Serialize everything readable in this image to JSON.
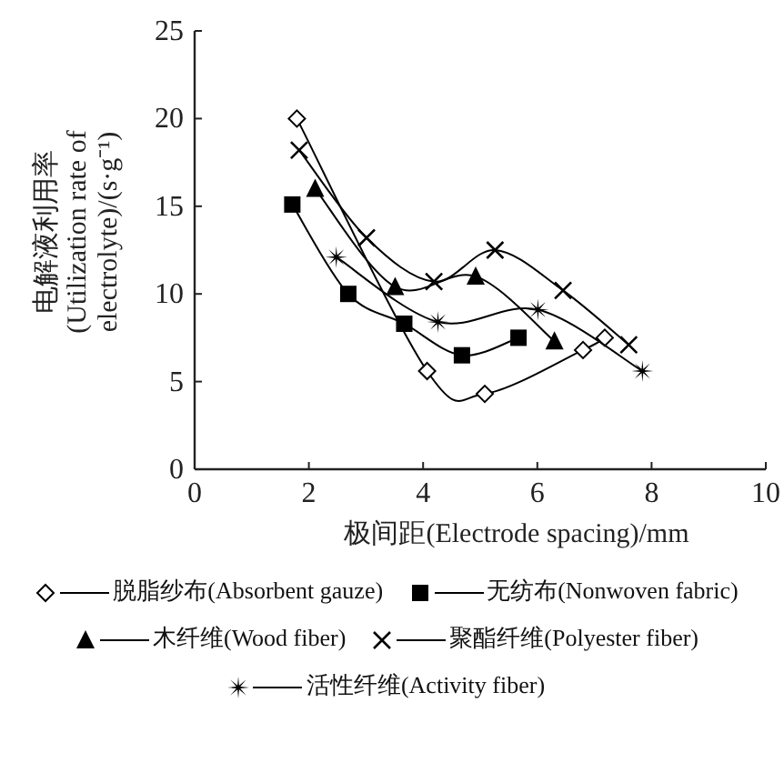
{
  "chart_data": {
    "type": "line",
    "ylabel": "电解液利用率\n(Utilization rate of\nelectrolyte)/(s·g⁻¹)",
    "xlabel": "极间距(Electrode spacing)/mm",
    "xlim": [
      0,
      10
    ],
    "xticks": [
      0,
      2,
      4,
      6,
      8,
      10
    ],
    "ylim": [
      0,
      25
    ],
    "yticks": [
      0,
      5,
      10,
      15,
      20,
      25
    ],
    "grid": false,
    "legend": "bottom",
    "line_style": "solid",
    "series": [
      {
        "name": "脱脂纱布(Absorbent gauze)",
        "color": "#000000",
        "marker": "diamond",
        "x": [
          1.79,
          4.07,
          5.08,
          6.8,
          7.18
        ],
        "values": [
          20.0,
          5.6,
          4.3,
          6.8,
          7.5
        ]
      },
      {
        "name": "无纺布(Nonwoven fabric)",
        "color": "#000000",
        "marker": "square",
        "x": [
          1.71,
          2.69,
          3.67,
          4.68,
          5.67
        ],
        "values": [
          15.1,
          10.0,
          8.3,
          6.5,
          7.5
        ]
      },
      {
        "name": "木纤维(Wood fiber)",
        "color": "#000000",
        "marker": "triangle",
        "x": [
          2.11,
          3.51,
          4.92,
          6.3
        ],
        "values": [
          16.0,
          10.4,
          11.0,
          7.3
        ]
      },
      {
        "name": "聚酯纤维(Polyester fiber)",
        "color": "#000000",
        "marker": "cross",
        "x": [
          1.83,
          3.01,
          4.19,
          5.26,
          6.45,
          7.6
        ],
        "values": [
          18.2,
          13.2,
          10.7,
          12.5,
          10.2,
          7.1
        ]
      },
      {
        "name": "活性纤维(Activity fiber)",
        "color": "#000000",
        "marker": "star",
        "x": [
          2.48,
          4.26,
          6.01,
          7.84
        ],
        "values": [
          12.1,
          8.4,
          9.1,
          5.6
        ]
      }
    ]
  }
}
